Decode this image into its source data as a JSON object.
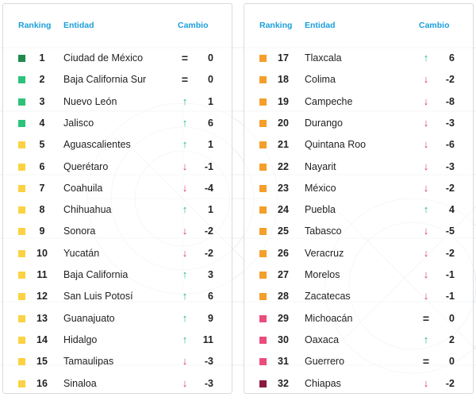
{
  "headers": {
    "ranking": "Ranking",
    "entidad": "Entidad",
    "cambio": "Cambio"
  },
  "colors": {
    "dark_green": "#1e8a4c",
    "green": "#2cc27a",
    "yellow": "#fbd242",
    "orange": "#f59e2a",
    "pink": "#ea4c7c",
    "maroon": "#8a1a3c"
  },
  "left_rows": [
    {
      "rank": "1",
      "name": "Ciudad de México",
      "dir": "eq",
      "change": "0",
      "color": "#1e8a4c"
    },
    {
      "rank": "2",
      "name": "Baja California Sur",
      "dir": "eq",
      "change": "0",
      "color": "#2cc27a"
    },
    {
      "rank": "3",
      "name": "Nuevo León",
      "dir": "up",
      "change": "1",
      "color": "#2cc27a"
    },
    {
      "rank": "4",
      "name": "Jalisco",
      "dir": "up",
      "change": "6",
      "color": "#2cc27a"
    },
    {
      "rank": "5",
      "name": "Aguascalientes",
      "dir": "up",
      "change": "1",
      "color": "#fbd242"
    },
    {
      "rank": "6",
      "name": "Querétaro",
      "dir": "down",
      "change": "-1",
      "color": "#fbd242"
    },
    {
      "rank": "7",
      "name": "Coahuila",
      "dir": "down",
      "change": "-4",
      "color": "#fbd242"
    },
    {
      "rank": "8",
      "name": "Chihuahua",
      "dir": "up",
      "change": "1",
      "color": "#fbd242"
    },
    {
      "rank": "9",
      "name": "Sonora",
      "dir": "down",
      "change": "-2",
      "color": "#fbd242"
    },
    {
      "rank": "10",
      "name": "Yucatán",
      "dir": "down",
      "change": "-2",
      "color": "#fbd242"
    },
    {
      "rank": "11",
      "name": "Baja California",
      "dir": "up",
      "change": "3",
      "color": "#fbd242"
    },
    {
      "rank": "12",
      "name": "San Luis Potosí",
      "dir": "up",
      "change": "6",
      "color": "#fbd242"
    },
    {
      "rank": "13",
      "name": "Guanajuato",
      "dir": "up",
      "change": "9",
      "color": "#fbd242"
    },
    {
      "rank": "14",
      "name": "Hidalgo",
      "dir": "up",
      "change": "11",
      "color": "#fbd242"
    },
    {
      "rank": "15",
      "name": "Tamaulipas",
      "dir": "down",
      "change": "-3",
      "color": "#fbd242"
    },
    {
      "rank": "16",
      "name": "Sinaloa",
      "dir": "down",
      "change": "-3",
      "color": "#fbd242"
    }
  ],
  "right_rows": [
    {
      "rank": "17",
      "name": "Tlaxcala",
      "dir": "up",
      "change": "6",
      "color": "#f59e2a"
    },
    {
      "rank": "18",
      "name": "Colima",
      "dir": "down",
      "change": "-2",
      "color": "#f59e2a"
    },
    {
      "rank": "19",
      "name": "Campeche",
      "dir": "down",
      "change": "-8",
      "color": "#f59e2a"
    },
    {
      "rank": "20",
      "name": "Durango",
      "dir": "down",
      "change": "-3",
      "color": "#f59e2a"
    },
    {
      "rank": "21",
      "name": "Quintana Roo",
      "dir": "down",
      "change": "-6",
      "color": "#f59e2a"
    },
    {
      "rank": "22",
      "name": "Nayarit",
      "dir": "down",
      "change": "-3",
      "color": "#f59e2a"
    },
    {
      "rank": "23",
      "name": "México",
      "dir": "down",
      "change": "-2",
      "color": "#f59e2a"
    },
    {
      "rank": "24",
      "name": "Puebla",
      "dir": "up",
      "change": "4",
      "color": "#f59e2a"
    },
    {
      "rank": "25",
      "name": "Tabasco",
      "dir": "down",
      "change": "-5",
      "color": "#f59e2a"
    },
    {
      "rank": "26",
      "name": "Veracruz",
      "dir": "down",
      "change": "-2",
      "color": "#f59e2a"
    },
    {
      "rank": "27",
      "name": "Morelos",
      "dir": "down",
      "change": "-1",
      "color": "#f59e2a"
    },
    {
      "rank": "28",
      "name": "Zacatecas",
      "dir": "down",
      "change": "-1",
      "color": "#f59e2a"
    },
    {
      "rank": "29",
      "name": "Michoacán",
      "dir": "eq",
      "change": "0",
      "color": "#ea4c7c"
    },
    {
      "rank": "30",
      "name": "Oaxaca",
      "dir": "up",
      "change": "2",
      "color": "#ea4c7c"
    },
    {
      "rank": "31",
      "name": "Guerrero",
      "dir": "eq",
      "change": "0",
      "color": "#ea4c7c"
    },
    {
      "rank": "32",
      "name": "Chiapas",
      "dir": "down",
      "change": "-2",
      "color": "#8a1a3c"
    }
  ]
}
